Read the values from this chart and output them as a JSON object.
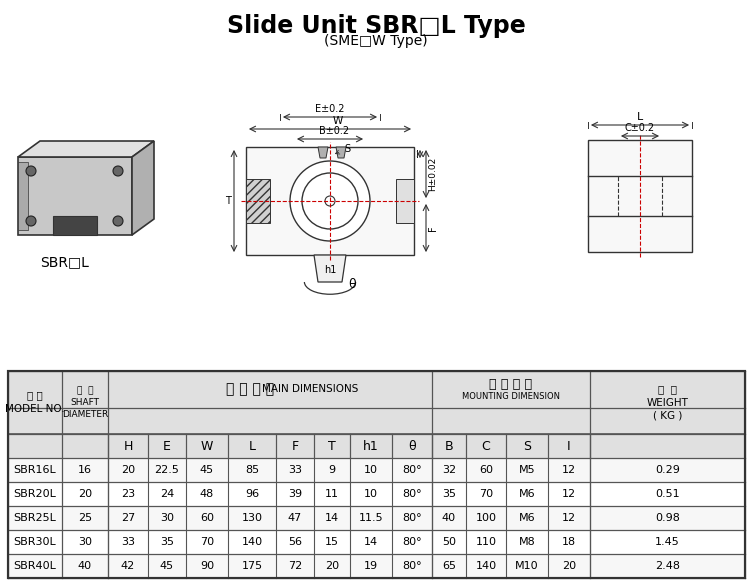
{
  "title": "Slide Unit SBR□L Type",
  "subtitle": "(SME□W Type)",
  "bg_color": "#ffffff",
  "label_sbr": "SBR□L",
  "data_rows": [
    [
      "SBR16L",
      "16",
      "20",
      "22.5",
      "45",
      "85",
      "33",
      "9",
      "10",
      "80°",
      "32",
      "60",
      "M5",
      "12",
      "0.29"
    ],
    [
      "SBR20L",
      "20",
      "23",
      "24",
      "48",
      "96",
      "39",
      "11",
      "10",
      "80°",
      "35",
      "70",
      "M6",
      "12",
      "0.51"
    ],
    [
      "SBR25L",
      "25",
      "27",
      "30",
      "60",
      "130",
      "47",
      "14",
      "11.5",
      "80°",
      "40",
      "100",
      "M6",
      "12",
      "0.98"
    ],
    [
      "SBR30L",
      "30",
      "33",
      "35",
      "70",
      "140",
      "56",
      "15",
      "14",
      "80°",
      "50",
      "110",
      "M8",
      "18",
      "1.45"
    ],
    [
      "SBR40L",
      "40",
      "42",
      "45",
      "90",
      "175",
      "72",
      "20",
      "19",
      "80°",
      "65",
      "140",
      "M10",
      "20",
      "2.48"
    ]
  ]
}
